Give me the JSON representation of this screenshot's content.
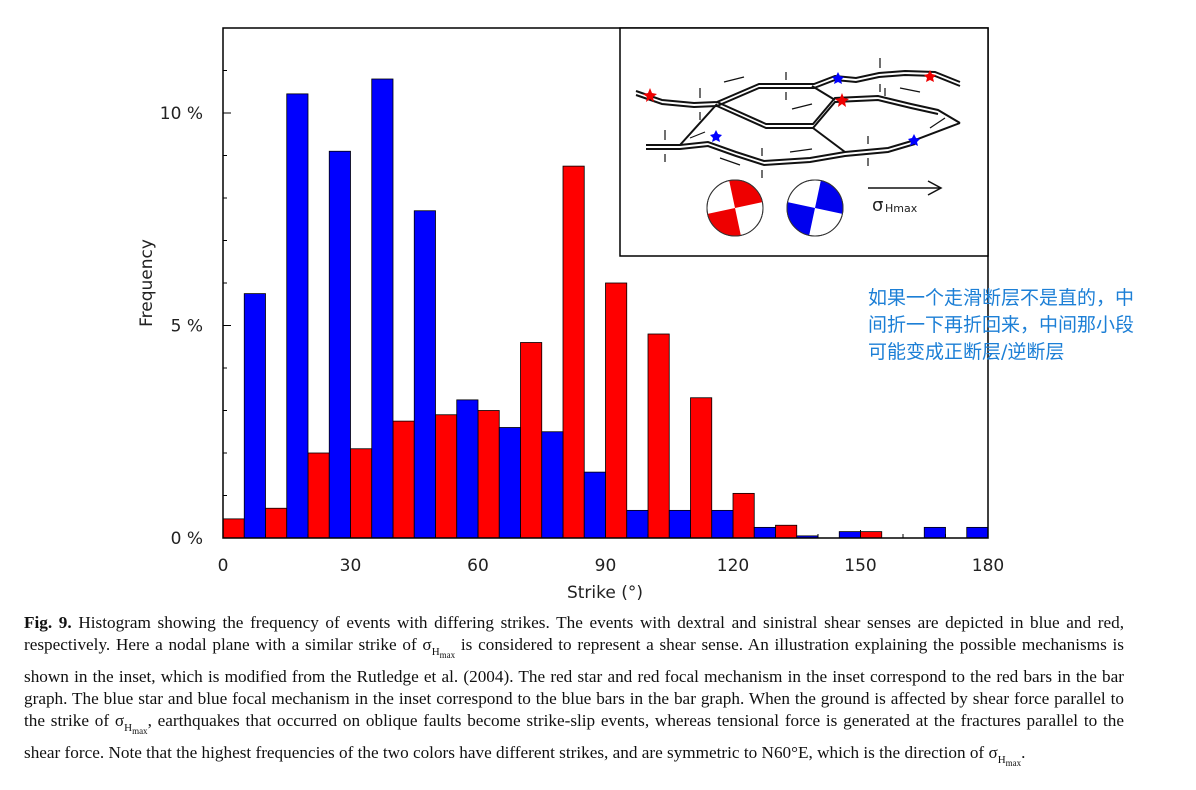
{
  "chart_data": {
    "type": "bar",
    "xlabel": "Strike (°)",
    "ylabel": "Frequency",
    "xlim": [
      0,
      180
    ],
    "ylim": [
      0,
      12
    ],
    "x_ticks": [
      "0",
      "30",
      "60",
      "90",
      "120",
      "150",
      "180"
    ],
    "y_ticks": [
      "0 %",
      "5 %",
      "10 %"
    ],
    "bin_width": 10,
    "series": [
      {
        "color": "#ff0000",
        "values": [
          0.45,
          0.7,
          2.0,
          2.1,
          2.75,
          2.9,
          3.0,
          4.6,
          8.75,
          6.0,
          4.8,
          3.3,
          1.05,
          0.3,
          0.0,
          0.15,
          0.0,
          0.0
        ]
      },
      {
        "color": "#0000ff",
        "values": [
          5.75,
          10.45,
          9.1,
          10.8,
          7.7,
          3.25,
          2.6,
          2.5,
          1.55,
          0.65,
          0.65,
          0.65,
          0.25,
          0.05,
          0.15,
          0.0,
          0.25,
          0.25
        ]
      }
    ]
  },
  "inset": {
    "sigma_label": "σ",
    "sigma_sub": "Hmax"
  },
  "annotation": {
    "text": "如果一个走滑断层不是直的，中\n间折一下再折回来，中间那小段\n可能变成正断层/逆断层"
  },
  "caption": {
    "fig_label": "Fig. 9.",
    "part1": " Histogram showing the frequency of events with differing strikes. The events with dextral and sinistral shear senses are depicted in blue and red, respectively. Here a nodal plane with a similar strike of σ",
    "part2": " is considered to represent a shear sense. An illustration explaining the possible mechanisms is shown in the inset, which is modified from the Rutledge et al. (2004). The red star and red focal mechanism in the inset correspond to the red bars in the bar graph. The blue star and blue focal mechanism in the inset correspond to the blue bars in the bar graph. When the ground is affected by shear force parallel to the strike of σ",
    "part3": ", earthquakes that occurred on oblique faults become strike-slip events, whereas tensional force is generated at the fractures parallel to the shear force. Note that the highest frequencies of the two colors have different strikes, and are symmetric to N60°E, which is the direction of σ",
    "part4": ".",
    "sub_h": "H",
    "sub_max": "max"
  }
}
